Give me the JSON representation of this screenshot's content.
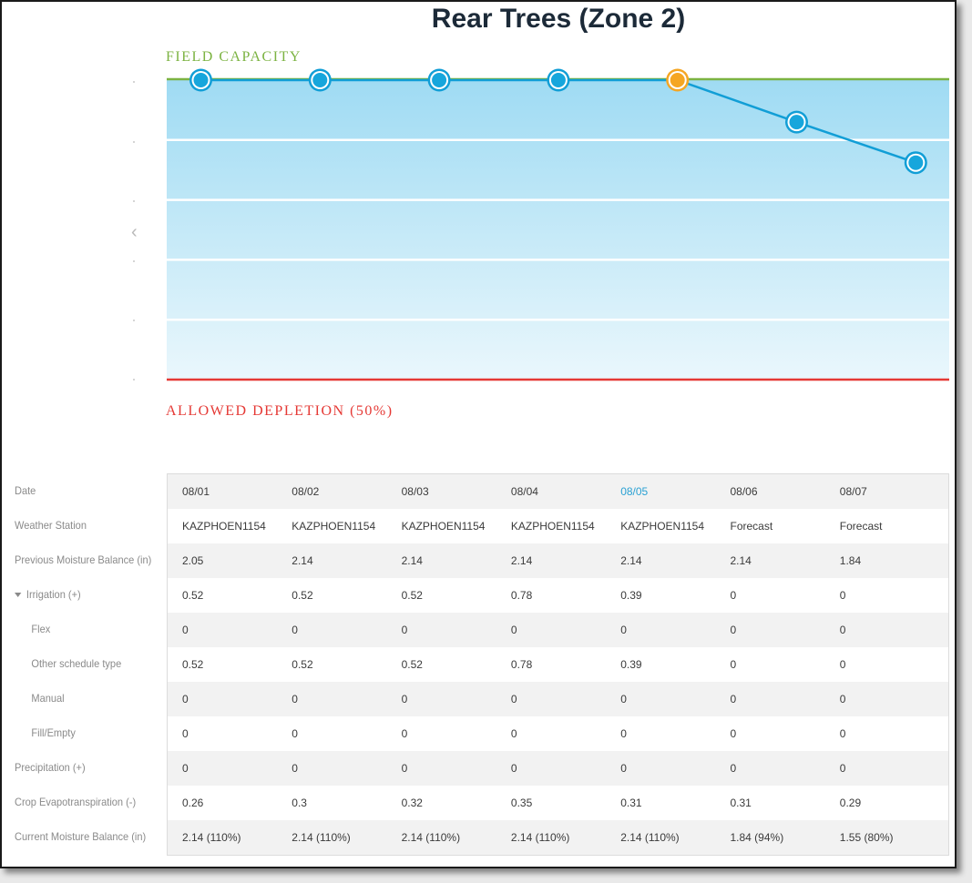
{
  "chart_data": {
    "type": "line",
    "title": "Rear Trees (Zone 2)",
    "xlabel": "",
    "ylabel": "",
    "categories": [
      "08/01",
      "08/02",
      "08/03",
      "08/04",
      "08/05",
      "08/06",
      "08/07"
    ],
    "series": [
      {
        "values": [
          2.14,
          2.14,
          2.14,
          2.14,
          2.14,
          1.84,
          1.55
        ],
        "selected_index": 4
      }
    ],
    "field_capacity": {
      "label": "FIELD CAPACITY",
      "value": 2.14
    },
    "allowed_depletion": {
      "label": "ALLOWED DEPLETION (50%)",
      "value": 0.0
    },
    "grid": true,
    "colors": {
      "line": "#119ed6",
      "point_fill": "#17a6dc",
      "point_selected": "#f5a623",
      "field_capacity": "#7cb342",
      "allowed_depletion": "#e53935",
      "band_top": "#9fdbf3",
      "band_bottom": "#eaf7fc"
    }
  },
  "table": {
    "row_labels": [
      {
        "label": "Date"
      },
      {
        "label": "Weather Station"
      },
      {
        "label": "Previous Moisture Balance (in)"
      },
      {
        "label": "Irrigation (+)",
        "expandable": true
      },
      {
        "label": "Flex",
        "indent": true
      },
      {
        "label": "Other schedule type",
        "indent": true
      },
      {
        "label": "Manual",
        "indent": true
      },
      {
        "label": "Fill/Empty",
        "indent": true
      },
      {
        "label": "Precipitation (+)"
      },
      {
        "label": "Crop Evapotranspiration (-)"
      },
      {
        "label": "Current Moisture Balance (in)"
      }
    ],
    "rows": [
      [
        "08/01",
        "08/02",
        "08/03",
        "08/04",
        "08/05",
        "08/06",
        "08/07"
      ],
      [
        "KAZPHOEN1154",
        "KAZPHOEN1154",
        "KAZPHOEN1154",
        "KAZPHOEN1154",
        "KAZPHOEN1154",
        "Forecast",
        "Forecast"
      ],
      [
        "2.05",
        "2.14",
        "2.14",
        "2.14",
        "2.14",
        "2.14",
        "1.84"
      ],
      [
        "0.52",
        "0.52",
        "0.52",
        "0.78",
        "0.39",
        "0",
        "0"
      ],
      [
        "0",
        "0",
        "0",
        "0",
        "0",
        "0",
        "0"
      ],
      [
        "0.52",
        "0.52",
        "0.52",
        "0.78",
        "0.39",
        "0",
        "0"
      ],
      [
        "0",
        "0",
        "0",
        "0",
        "0",
        "0",
        "0"
      ],
      [
        "0",
        "0",
        "0",
        "0",
        "0",
        "0",
        "0"
      ],
      [
        "0",
        "0",
        "0",
        "0",
        "0",
        "0",
        "0"
      ],
      [
        "0.26",
        "0.3",
        "0.32",
        "0.35",
        "0.31",
        "0.31",
        "0.29"
      ],
      [
        "2.14 (110%)",
        "2.14 (110%)",
        "2.14 (110%)",
        "2.14 (110%)",
        "2.14 (110%)",
        "1.84 (94%)",
        "1.55 (80%)"
      ]
    ],
    "selected_column": 4
  },
  "nav": {
    "prev_icon": "chevron-left-icon",
    "prev_glyph": "‹"
  }
}
